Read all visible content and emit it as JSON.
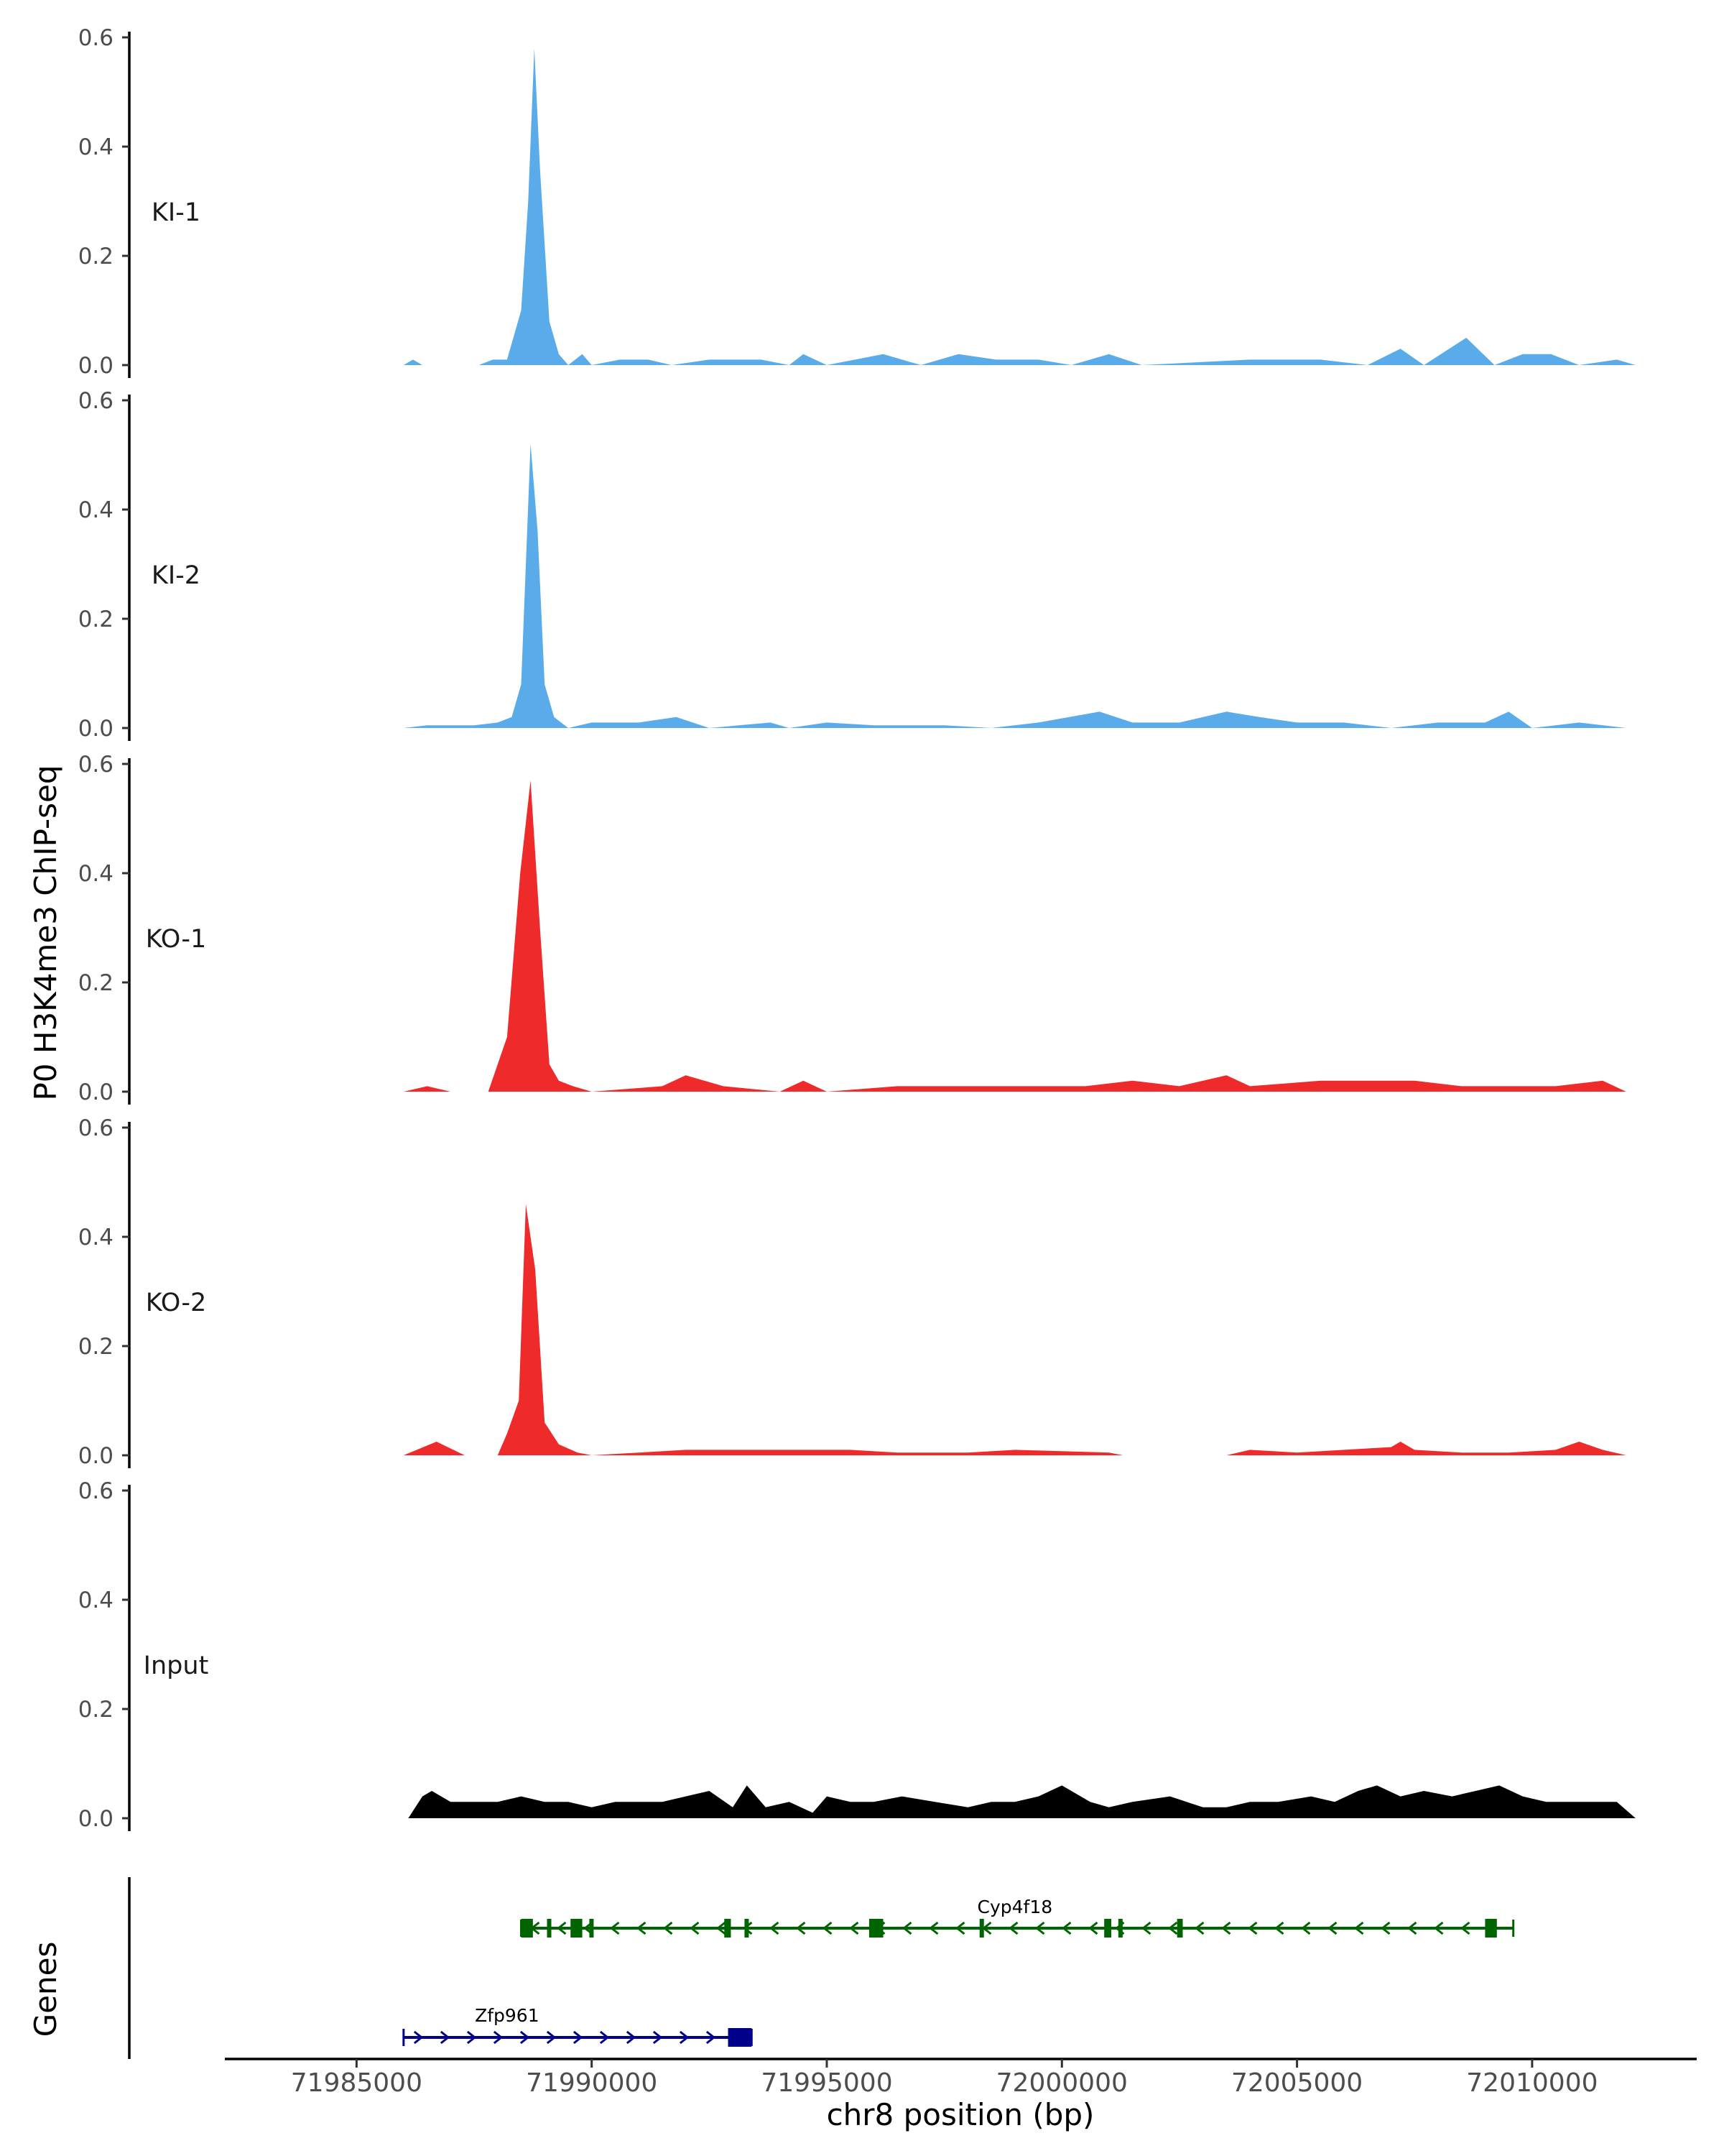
{
  "chart_data": {
    "type": "area",
    "ylabel": "P0 H3K4me3 ChIP-seq",
    "xlabel": "chr8 position (bp)",
    "genes_label": "Genes",
    "xlim": [
      71982000,
      72013500
    ],
    "ylim": [
      0,
      0.6
    ],
    "y_ticks": [
      0.0,
      0.2,
      0.4,
      0.6
    ],
    "y_tick_labels": [
      "0.0",
      "0.2",
      "0.4",
      "0.6"
    ],
    "x_ticks": [
      71985000,
      71990000,
      71995000,
      72000000,
      72005000,
      72010000
    ],
    "x_tick_labels": [
      "71985000",
      "71990000",
      "71995000",
      "72000000",
      "72005000",
      "72010000"
    ],
    "colors": {
      "KI": "#5aabe9",
      "KO": "#ee2a2a",
      "Input": "#000000",
      "gene1": "#006400",
      "gene2": "#00008b"
    },
    "tracks": [
      {
        "name": "KI-1",
        "color": "#5aabe9",
        "points": [
          [
            71986000,
            0
          ],
          [
            71986200,
            0.01
          ],
          [
            71986400,
            0
          ],
          [
            71987600,
            0
          ],
          [
            71987900,
            0.01
          ],
          [
            71988200,
            0.01
          ],
          [
            71988500,
            0.1
          ],
          [
            71988650,
            0.3
          ],
          [
            71988780,
            0.58
          ],
          [
            71988900,
            0.36
          ],
          [
            71989100,
            0.08
          ],
          [
            71989300,
            0.02
          ],
          [
            71989500,
            0
          ],
          [
            71989800,
            0.02
          ],
          [
            71990000,
            0
          ],
          [
            71990600,
            0.01
          ],
          [
            71991200,
            0.01
          ],
          [
            71991700,
            0
          ],
          [
            71992500,
            0.01
          ],
          [
            71993600,
            0.01
          ],
          [
            71994200,
            0
          ],
          [
            71994500,
            0.02
          ],
          [
            71995000,
            0
          ],
          [
            71996200,
            0.02
          ],
          [
            71997000,
            0
          ],
          [
            71997800,
            0.02
          ],
          [
            71998600,
            0.01
          ],
          [
            71999500,
            0.01
          ],
          [
            72000200,
            0
          ],
          [
            72001000,
            0.02
          ],
          [
            72001700,
            0
          ],
          [
            72004000,
            0.01
          ],
          [
            72005500,
            0.01
          ],
          [
            72006500,
            0
          ],
          [
            72007200,
            0.03
          ],
          [
            72007700,
            0
          ],
          [
            72008600,
            0.05
          ],
          [
            72009200,
            0
          ],
          [
            72009800,
            0.02
          ],
          [
            72010400,
            0.02
          ],
          [
            72011000,
            0
          ],
          [
            72011800,
            0.01
          ],
          [
            72012200,
            0
          ]
        ]
      },
      {
        "name": "KI-2",
        "color": "#5aabe9",
        "points": [
          [
            71986000,
            0
          ],
          [
            71986500,
            0.005
          ],
          [
            71987500,
            0.005
          ],
          [
            71988000,
            0.01
          ],
          [
            71988300,
            0.02
          ],
          [
            71988500,
            0.08
          ],
          [
            71988700,
            0.52
          ],
          [
            71988850,
            0.36
          ],
          [
            71989000,
            0.08
          ],
          [
            71989200,
            0.02
          ],
          [
            71989500,
            0
          ],
          [
            71990000,
            0.01
          ],
          [
            71991000,
            0.01
          ],
          [
            71991800,
            0.02
          ],
          [
            71992500,
            0
          ],
          [
            71993800,
            0.01
          ],
          [
            71994200,
            0
          ],
          [
            71995000,
            0.01
          ],
          [
            71996000,
            0.005
          ],
          [
            71997500,
            0.005
          ],
          [
            71998500,
            0
          ],
          [
            71999500,
            0.01
          ],
          [
            72000800,
            0.03
          ],
          [
            72001500,
            0.01
          ],
          [
            72002500,
            0.01
          ],
          [
            72003500,
            0.03
          ],
          [
            72004200,
            0.02
          ],
          [
            72005000,
            0.01
          ],
          [
            72006000,
            0.01
          ],
          [
            72007000,
            0
          ],
          [
            72008000,
            0.01
          ],
          [
            72009000,
            0.01
          ],
          [
            72009500,
            0.03
          ],
          [
            72010000,
            0
          ],
          [
            72011000,
            0.01
          ],
          [
            72012000,
            0
          ]
        ]
      },
      {
        "name": "KO-1",
        "color": "#ee2a2a",
        "points": [
          [
            71986000,
            0
          ],
          [
            71986500,
            0.01
          ],
          [
            71987000,
            0
          ],
          [
            71987800,
            0
          ],
          [
            71988200,
            0.1
          ],
          [
            71988480,
            0.4
          ],
          [
            71988700,
            0.57
          ],
          [
            71988900,
            0.3
          ],
          [
            71989100,
            0.05
          ],
          [
            71989300,
            0.02
          ],
          [
            71989600,
            0.01
          ],
          [
            71990000,
            0
          ],
          [
            71991500,
            0.01
          ],
          [
            71992000,
            0.03
          ],
          [
            71992800,
            0.01
          ],
          [
            71994000,
            0
          ],
          [
            71994500,
            0.02
          ],
          [
            71995000,
            0
          ],
          [
            71996500,
            0.01
          ],
          [
            71997500,
            0.01
          ],
          [
            71998500,
            0.01
          ],
          [
            71999500,
            0.01
          ],
          [
            72000500,
            0.01
          ],
          [
            72001500,
            0.02
          ],
          [
            72002500,
            0.01
          ],
          [
            72003500,
            0.03
          ],
          [
            72004000,
            0.01
          ],
          [
            72005500,
            0.02
          ],
          [
            72006500,
            0.02
          ],
          [
            72007500,
            0.02
          ],
          [
            72008500,
            0.01
          ],
          [
            72009500,
            0.01
          ],
          [
            72010500,
            0.01
          ],
          [
            72011500,
            0.02
          ],
          [
            72012000,
            0
          ]
        ]
      },
      {
        "name": "KO-2",
        "color": "#ee2a2a",
        "points": [
          [
            71986000,
            0
          ],
          [
            71986700,
            0.025
          ],
          [
            71987300,
            0
          ],
          [
            71988000,
            0
          ],
          [
            71988200,
            0.04
          ],
          [
            71988450,
            0.1
          ],
          [
            71988600,
            0.46
          ],
          [
            71988800,
            0.34
          ],
          [
            71989000,
            0.06
          ],
          [
            71989300,
            0.02
          ],
          [
            71989700,
            0.005
          ],
          [
            71990000,
            0
          ],
          [
            71991000,
            0.005
          ],
          [
            71992000,
            0.01
          ],
          [
            71993000,
            0.01
          ],
          [
            71994500,
            0.01
          ],
          [
            71995500,
            0.01
          ],
          [
            71996500,
            0.005
          ],
          [
            71998000,
            0.005
          ],
          [
            71999000,
            0.01
          ],
          [
            72001000,
            0.005
          ],
          [
            72001300,
            0
          ],
          [
            72003500,
            0
          ],
          [
            72004000,
            0.01
          ],
          [
            72005000,
            0.005
          ],
          [
            72006000,
            0.01
          ],
          [
            72007000,
            0.015
          ],
          [
            72007200,
            0.025
          ],
          [
            72007500,
            0.01
          ],
          [
            72008500,
            0.005
          ],
          [
            72009500,
            0.005
          ],
          [
            72010500,
            0.01
          ],
          [
            72011000,
            0.025
          ],
          [
            72011500,
            0.01
          ],
          [
            72012000,
            0
          ]
        ]
      },
      {
        "name": "Input",
        "color": "#000000",
        "points": [
          [
            71986100,
            0
          ],
          [
            71986400,
            0.04
          ],
          [
            71986600,
            0.05
          ],
          [
            71987000,
            0.03
          ],
          [
            71987500,
            0.03
          ],
          [
            71988000,
            0.03
          ],
          [
            71988500,
            0.04
          ],
          [
            71989000,
            0.03
          ],
          [
            71989500,
            0.03
          ],
          [
            71990000,
            0.02
          ],
          [
            71990500,
            0.03
          ],
          [
            71991000,
            0.03
          ],
          [
            71991500,
            0.03
          ],
          [
            71992000,
            0.04
          ],
          [
            71992500,
            0.05
          ],
          [
            71993000,
            0.02
          ],
          [
            71993300,
            0.06
          ],
          [
            71993700,
            0.02
          ],
          [
            71994200,
            0.03
          ],
          [
            71994700,
            0.01
          ],
          [
            71995000,
            0.04
          ],
          [
            71995500,
            0.03
          ],
          [
            71996000,
            0.03
          ],
          [
            71996600,
            0.04
          ],
          [
            71997300,
            0.03
          ],
          [
            71998000,
            0.02
          ],
          [
            71998500,
            0.03
          ],
          [
            71999000,
            0.03
          ],
          [
            71999500,
            0.04
          ],
          [
            72000000,
            0.06
          ],
          [
            72000600,
            0.03
          ],
          [
            72001000,
            0.02
          ],
          [
            72001500,
            0.03
          ],
          [
            72002300,
            0.04
          ],
          [
            72003000,
            0.02
          ],
          [
            72003500,
            0.02
          ],
          [
            72004000,
            0.03
          ],
          [
            72004600,
            0.03
          ],
          [
            72005300,
            0.04
          ],
          [
            72005800,
            0.03
          ],
          [
            72006300,
            0.05
          ],
          [
            72006700,
            0.06
          ],
          [
            72007200,
            0.04
          ],
          [
            72007700,
            0.05
          ],
          [
            72008300,
            0.04
          ],
          [
            72008800,
            0.05
          ],
          [
            72009300,
            0.06
          ],
          [
            72009800,
            0.04
          ],
          [
            72010300,
            0.03
          ],
          [
            72010800,
            0.03
          ],
          [
            72011300,
            0.03
          ],
          [
            72011800,
            0.03
          ],
          [
            72012200,
            0
          ]
        ]
      }
    ],
    "genes": [
      {
        "name": "Cyp4f18",
        "color": "#006400",
        "strand": "-",
        "start": 71988500,
        "end": 72009600,
        "exons": [
          [
            71988500,
            71988750
          ],
          [
            71989050,
            71989130
          ],
          [
            71989550,
            71989800
          ],
          [
            71989950,
            71990030
          ],
          [
            71992820,
            71992960
          ],
          [
            71993250,
            71993300
          ],
          [
            71995900,
            71996200
          ],
          [
            71998250,
            71998330
          ],
          [
            72000900,
            72001050
          ],
          [
            72001200,
            72001250
          ],
          [
            72002450,
            72002570
          ],
          [
            72009000,
            72009250
          ]
        ]
      },
      {
        "name": "Zfp961",
        "color": "#00008b",
        "strand": "+",
        "start": 71986000,
        "end": 71993400,
        "exons": [
          [
            71992900,
            71993400
          ]
        ]
      }
    ]
  }
}
